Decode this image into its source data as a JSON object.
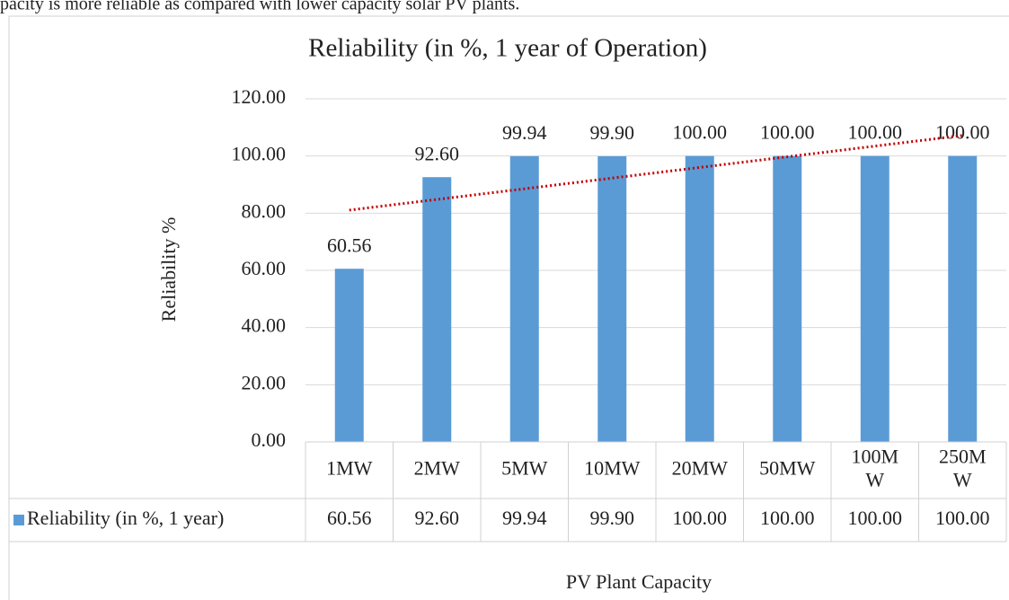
{
  "page_text": "pacity is more reliable as compared with lower capacity solar PV plants.",
  "chart_data": {
    "type": "bar",
    "title": "Reliability (in %, 1 year of Operation)",
    "y_label": "Reliability %",
    "x_label": "PV Plant Capacity",
    "categories": [
      "1MW",
      "2MW",
      "5MW",
      "10MW",
      "20MW",
      "50MW",
      "100MW",
      "250MW"
    ],
    "series": [
      {
        "name": "Reliability (in %, 1 year)",
        "color": "#5b9bd5",
        "values": [
          60.56,
          92.6,
          99.94,
          99.9,
          100,
          100,
          100,
          100
        ],
        "value_labels": [
          "60.56",
          "92.60",
          "99.94",
          "99.90",
          "100.00",
          "100.00",
          "100.00",
          "100.00"
        ]
      }
    ],
    "ylim": [
      0,
      120
    ],
    "yticks": [
      {
        "value": 0,
        "label": "0.00"
      },
      {
        "value": 20,
        "label": "20.00"
      },
      {
        "value": 40,
        "label": "40.00"
      },
      {
        "value": 60,
        "label": "60.00"
      },
      {
        "value": 80,
        "label": "80.00"
      },
      {
        "value": 100,
        "label": "100.00"
      },
      {
        "value": 120,
        "label": "120.00"
      }
    ],
    "grid": true,
    "trendline": {
      "kind": "linear",
      "color": "#c00000"
    },
    "data_table": true
  }
}
